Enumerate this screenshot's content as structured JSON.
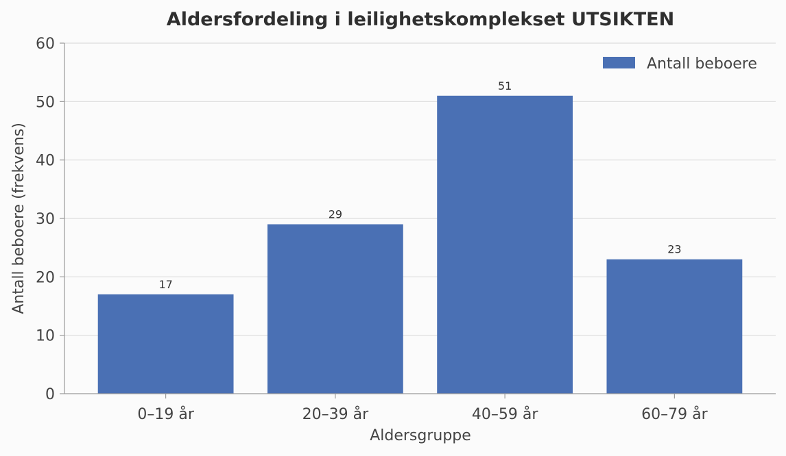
{
  "chart_data": {
    "type": "bar",
    "title": "Aldersfordeling i leilighetskomplekset UTSIKTEN",
    "xlabel": "Aldersgruppe",
    "ylabel": "Antall beboere (frekvens)",
    "categories": [
      "0–19 år",
      "20–39 år",
      "40–59 år",
      "60–79 år"
    ],
    "series": [
      {
        "name": "Antall beboere",
        "values": [
          17,
          29,
          51,
          23
        ]
      }
    ],
    "data_labels": [
      "17",
      "29",
      "51",
      "23"
    ],
    "ylim": [
      0,
      60
    ],
    "yticks": [
      0,
      10,
      20,
      30,
      40,
      50,
      60
    ],
    "grid": true,
    "legend_position": "top-right",
    "colors": {
      "bar": "#4a70b4",
      "background": "#fbfbfb"
    }
  }
}
